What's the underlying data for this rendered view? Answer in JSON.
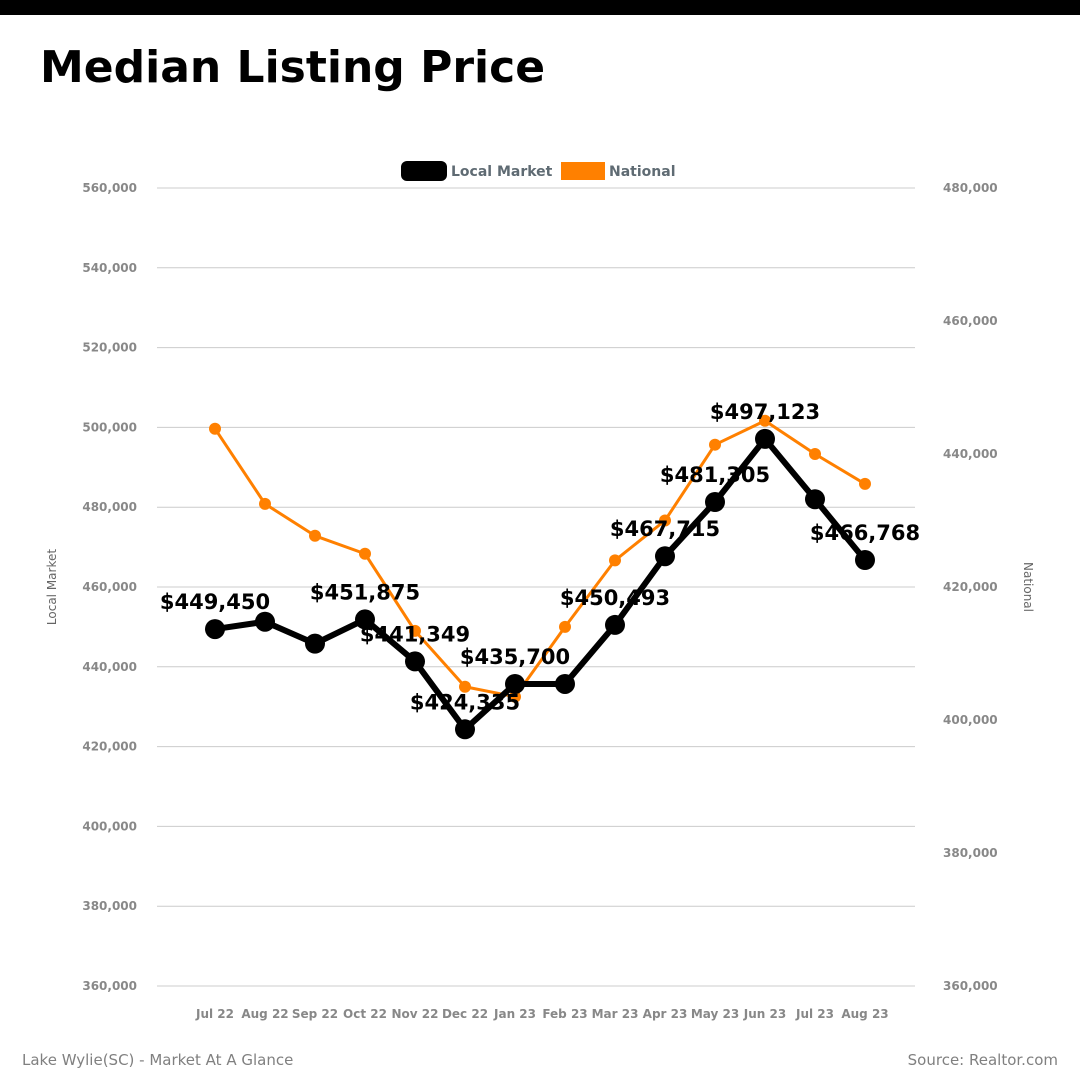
{
  "title": "Median Listing Price",
  "footer": {
    "left": "Lake Wylie(SC) - Market At A Glance",
    "right": "Source: Realtor.com"
  },
  "colors": {
    "local": "#000000",
    "national": "#ff8000",
    "grid": "#cccccc",
    "top_bar": "#000000"
  },
  "chart_data": {
    "type": "line",
    "title": "Median Listing Price",
    "categories": [
      "Jul 22",
      "Aug 22",
      "Sep 22",
      "Oct 22",
      "Nov 22",
      "Dec 22",
      "Jan 23",
      "Feb 23",
      "Mar 23",
      "Apr 23",
      "May 23",
      "Jun 23",
      "Jul 23",
      "Aug 23"
    ],
    "y_left": {
      "label": "Local Market",
      "range": [
        360000,
        560000
      ],
      "ticks": [
        "360,000",
        "380,000",
        "400,000",
        "420,000",
        "440,000",
        "460,000",
        "480,000",
        "500,000",
        "520,000",
        "540,000",
        "560,000"
      ]
    },
    "y_right": {
      "label": "National",
      "range": [
        360000,
        480000
      ],
      "ticks": [
        "360,000",
        "380,000",
        "400,000",
        "420,000",
        "440,000",
        "460,000",
        "480,000"
      ]
    },
    "grid": true,
    "legend_position": "top-center",
    "series": [
      {
        "name": "Local Market",
        "axis": "left",
        "color": "#000000",
        "values": [
          449450,
          451300,
          445800,
          451875,
          441349,
          424335,
          435700,
          435700,
          450493,
          467715,
          481305,
          497123,
          482000,
          466768
        ],
        "labels": [
          "$449,450",
          "",
          "",
          "$451,875",
          "$441,349",
          "$424,335",
          "$435,700",
          "",
          "$450,493",
          "$467,715",
          "$481,305",
          "$497,123",
          "",
          "$466,768"
        ]
      },
      {
        "name": "National",
        "axis": "right",
        "color": "#ff8000",
        "values": [
          443800,
          432500,
          427700,
          425000,
          413400,
          405000,
          403500,
          414000,
          424000,
          430000,
          441400,
          445000,
          440000,
          435500
        ]
      }
    ]
  }
}
